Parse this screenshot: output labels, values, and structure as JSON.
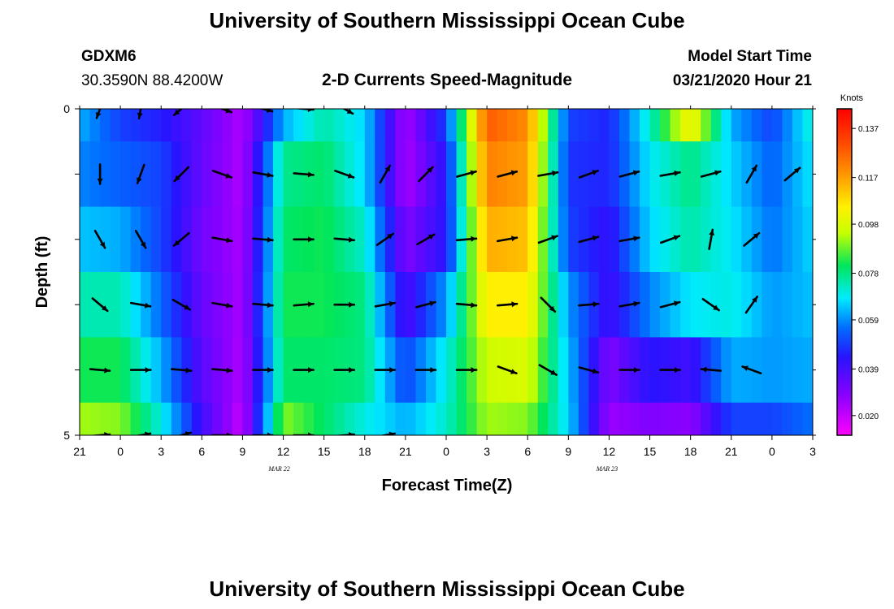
{
  "header": {
    "title": "University of Southern Mississippi Ocean Cube",
    "footer_title": "University of Southern Mississippi Ocean Cube",
    "station_id": "GDXM6",
    "station_coords": "30.3590N 88.4200W",
    "chart_title": "2-D Currents Speed-Magnitude",
    "model_start_label": "Model Start Time",
    "model_start_value": "03/21/2020 Hour 21"
  },
  "chart_data": {
    "type": "heatmap",
    "title": "2-D Currents Speed-Magnitude",
    "xlabel": "Forecast Time(Z)",
    "ylabel": "Depth (ft)",
    "x_tick_labels": [
      "21",
      "0",
      "3",
      "6",
      "9",
      "12",
      "15",
      "18",
      "21",
      "0",
      "3",
      "6",
      "9",
      "12",
      "15",
      "18",
      "21",
      "0",
      "3"
    ],
    "y_tick_labels": [
      "0",
      "5"
    ],
    "y_range": [
      0,
      5
    ],
    "date_labels": [
      {
        "text": "MAR 22",
        "tick_index": 4.9
      },
      {
        "text": "MAR 23",
        "tick_index": 12.95
      }
    ],
    "colorbar": {
      "unit_label": "Knots",
      "tick_labels": [
        "0.137",
        "0.117",
        "0.098",
        "0.078",
        "0.059",
        "0.039",
        "0.020"
      ],
      "tick_values": [
        0.137,
        0.117,
        0.098,
        0.078,
        0.059,
        0.039,
        0.02
      ],
      "range": [
        0.012,
        0.145
      ]
    },
    "n_time_steps": 19,
    "depth_band_edges": [
      0,
      0.5,
      1.5,
      2.5,
      3.5,
      4.5,
      5
    ],
    "speed_rows": [
      [
        0.062,
        0.05,
        0.045,
        0.035,
        0.023,
        0.062,
        0.075,
        0.066,
        0.024,
        0.05,
        0.128,
        0.12,
        0.05,
        0.046,
        0.072,
        0.104,
        0.062,
        0.05,
        0.072
      ],
      [
        0.058,
        0.054,
        0.05,
        0.034,
        0.023,
        0.077,
        0.08,
        0.066,
        0.024,
        0.044,
        0.122,
        0.117,
        0.048,
        0.046,
        0.068,
        0.078,
        0.066,
        0.054,
        0.068
      ],
      [
        0.064,
        0.062,
        0.05,
        0.032,
        0.024,
        0.08,
        0.082,
        0.072,
        0.03,
        0.044,
        0.115,
        0.112,
        0.05,
        0.042,
        0.066,
        0.075,
        0.068,
        0.056,
        0.066
      ],
      [
        0.074,
        0.074,
        0.055,
        0.034,
        0.024,
        0.082,
        0.082,
        0.078,
        0.038,
        0.06,
        0.105,
        0.105,
        0.06,
        0.04,
        0.058,
        0.068,
        0.07,
        0.06,
        0.064
      ],
      [
        0.082,
        0.082,
        0.062,
        0.036,
        0.023,
        0.08,
        0.08,
        0.078,
        0.05,
        0.07,
        0.096,
        0.098,
        0.064,
        0.03,
        0.044,
        0.04,
        0.062,
        0.06,
        0.062
      ],
      [
        0.092,
        0.09,
        0.07,
        0.04,
        0.02,
        0.09,
        0.08,
        0.07,
        0.062,
        0.072,
        0.092,
        0.09,
        0.066,
        0.026,
        0.03,
        0.028,
        0.05,
        0.05,
        0.056
      ]
    ],
    "vector_depths": [
      0,
      1,
      2,
      3,
      4,
      5
    ],
    "vector_rows": [
      [
        [
          250,
          1
        ],
        [
          260,
          1
        ],
        [
          220,
          1
        ],
        [
          340,
          1
        ],
        [
          345,
          1
        ],
        [
          355,
          1
        ],
        [
          330,
          1
        ],
        null,
        null,
        null,
        null,
        null,
        null,
        null,
        null,
        null,
        null,
        null,
        null
      ],
      [
        [
          270,
          1
        ],
        [
          250,
          1
        ],
        [
          225,
          1
        ],
        [
          340,
          1
        ],
        [
          350,
          1
        ],
        [
          355,
          1
        ],
        [
          340,
          1
        ],
        [
          60,
          1
        ],
        [
          45,
          1
        ],
        [
          15,
          1
        ],
        [
          15,
          1
        ],
        [
          10,
          1
        ],
        [
          20,
          1
        ],
        [
          15,
          1
        ],
        [
          10,
          1
        ],
        [
          15,
          1
        ],
        [
          60,
          1
        ],
        [
          40,
          1
        ],
        null
      ],
      [
        [
          300,
          1
        ],
        [
          300,
          1
        ],
        [
          220,
          1
        ],
        [
          350,
          1
        ],
        [
          355,
          1
        ],
        [
          0,
          1
        ],
        [
          355,
          1
        ],
        [
          35,
          1
        ],
        [
          30,
          1
        ],
        [
          5,
          1
        ],
        [
          10,
          1
        ],
        [
          20,
          1
        ],
        [
          15,
          1
        ],
        [
          10,
          1
        ],
        [
          20,
          1
        ],
        [
          80,
          1
        ],
        [
          40,
          1
        ],
        null,
        null
      ],
      [
        [
          320,
          1
        ],
        [
          350,
          1
        ],
        [
          330,
          1
        ],
        [
          350,
          1
        ],
        [
          355,
          1
        ],
        [
          5,
          1
        ],
        [
          0,
          1
        ],
        [
          10,
          1
        ],
        [
          15,
          1
        ],
        [
          355,
          1
        ],
        [
          5,
          1
        ],
        [
          315,
          1
        ],
        [
          5,
          1
        ],
        [
          10,
          1
        ],
        [
          15,
          1
        ],
        [
          325,
          1
        ],
        [
          55,
          1
        ],
        null,
        null
      ],
      [
        [
          355,
          1
        ],
        [
          0,
          1
        ],
        [
          355,
          1
        ],
        [
          355,
          1
        ],
        [
          0,
          1
        ],
        [
          0,
          1
        ],
        [
          0,
          1
        ],
        [
          0,
          1
        ],
        [
          0,
          1
        ],
        [
          0,
          1
        ],
        [
          340,
          1
        ],
        [
          330,
          1
        ],
        [
          345,
          1
        ],
        [
          0,
          1
        ],
        [
          0,
          1
        ],
        [
          175,
          1
        ],
        [
          160,
          1
        ],
        null,
        null
      ],
      [
        [
          5,
          1
        ],
        [
          10,
          1
        ],
        [
          15,
          1
        ],
        [
          0,
          1
        ],
        [
          0,
          1
        ],
        [
          0,
          1
        ],
        [
          5,
          1
        ],
        [
          10,
          1
        ],
        null,
        null,
        null,
        null,
        null,
        null,
        null,
        null,
        null,
        null,
        null
      ]
    ]
  }
}
